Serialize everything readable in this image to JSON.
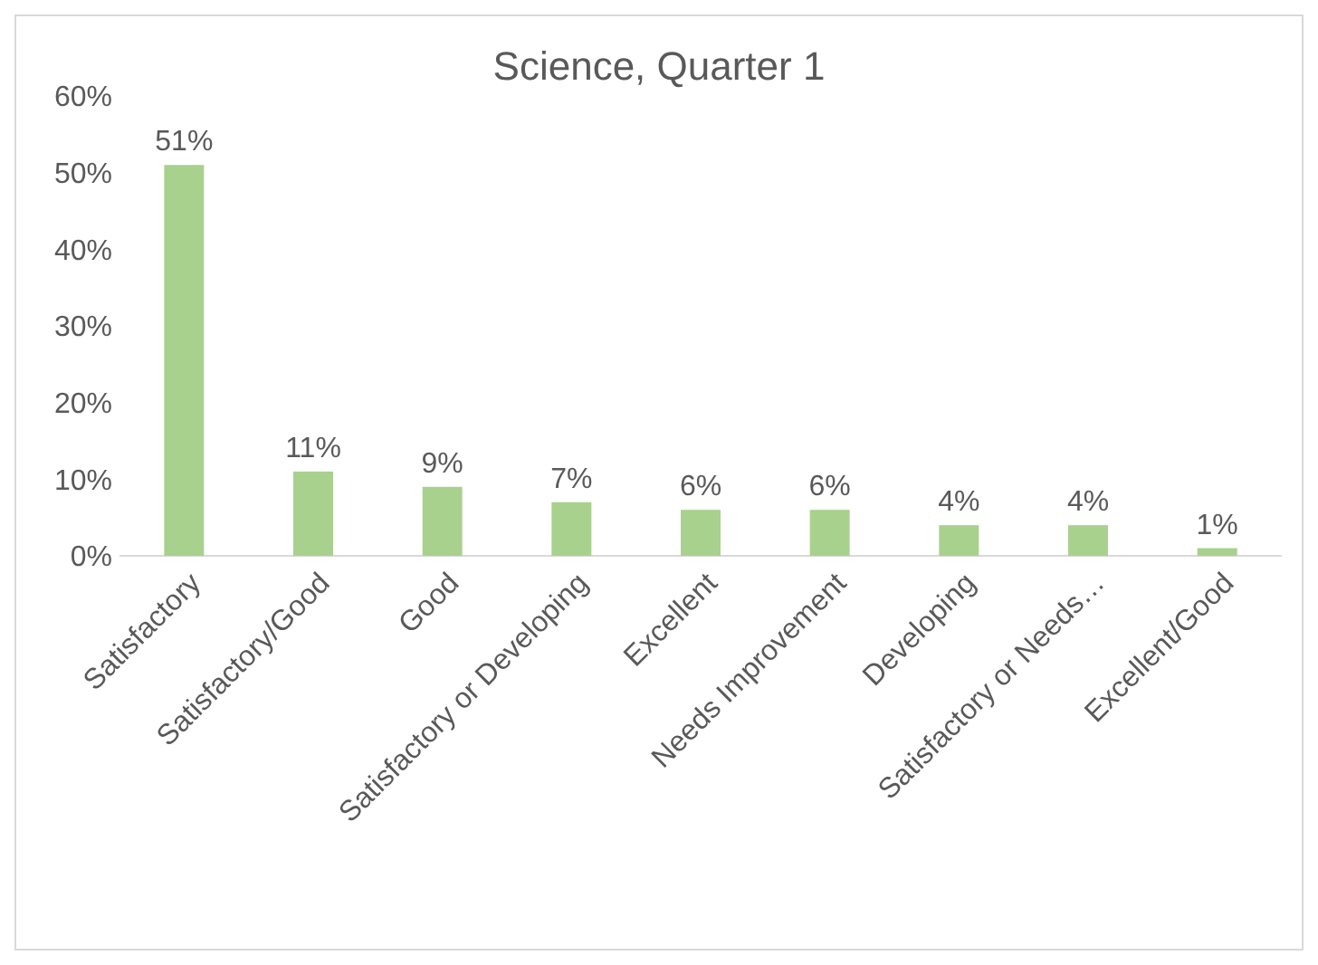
{
  "chart_data": {
    "type": "bar",
    "title": "Science, Quarter 1",
    "categories": [
      "Satisfactory",
      "Satisfactory/Good",
      "Good",
      "Satisfactory or Developing",
      "Excellent",
      "Needs Improvement",
      "Developing",
      "Satisfactory or Needs…",
      "Excellent/Good"
    ],
    "values": [
      51,
      11,
      9,
      7,
      6,
      6,
      4,
      4,
      1
    ],
    "value_labels": [
      "51%",
      "11%",
      "9%",
      "7%",
      "6%",
      "6%",
      "4%",
      "4%",
      "1%"
    ],
    "color": "#a9d18e",
    "ylim": [
      0,
      60
    ],
    "yticks": [
      {
        "value": 0,
        "label": "0%"
      },
      {
        "value": 10,
        "label": "10%"
      },
      {
        "value": 20,
        "label": "20%"
      },
      {
        "value": 30,
        "label": "30%"
      },
      {
        "value": 40,
        "label": "40%"
      },
      {
        "value": 50,
        "label": "50%"
      },
      {
        "value": 60,
        "label": "60%"
      }
    ],
    "grid": false
  }
}
